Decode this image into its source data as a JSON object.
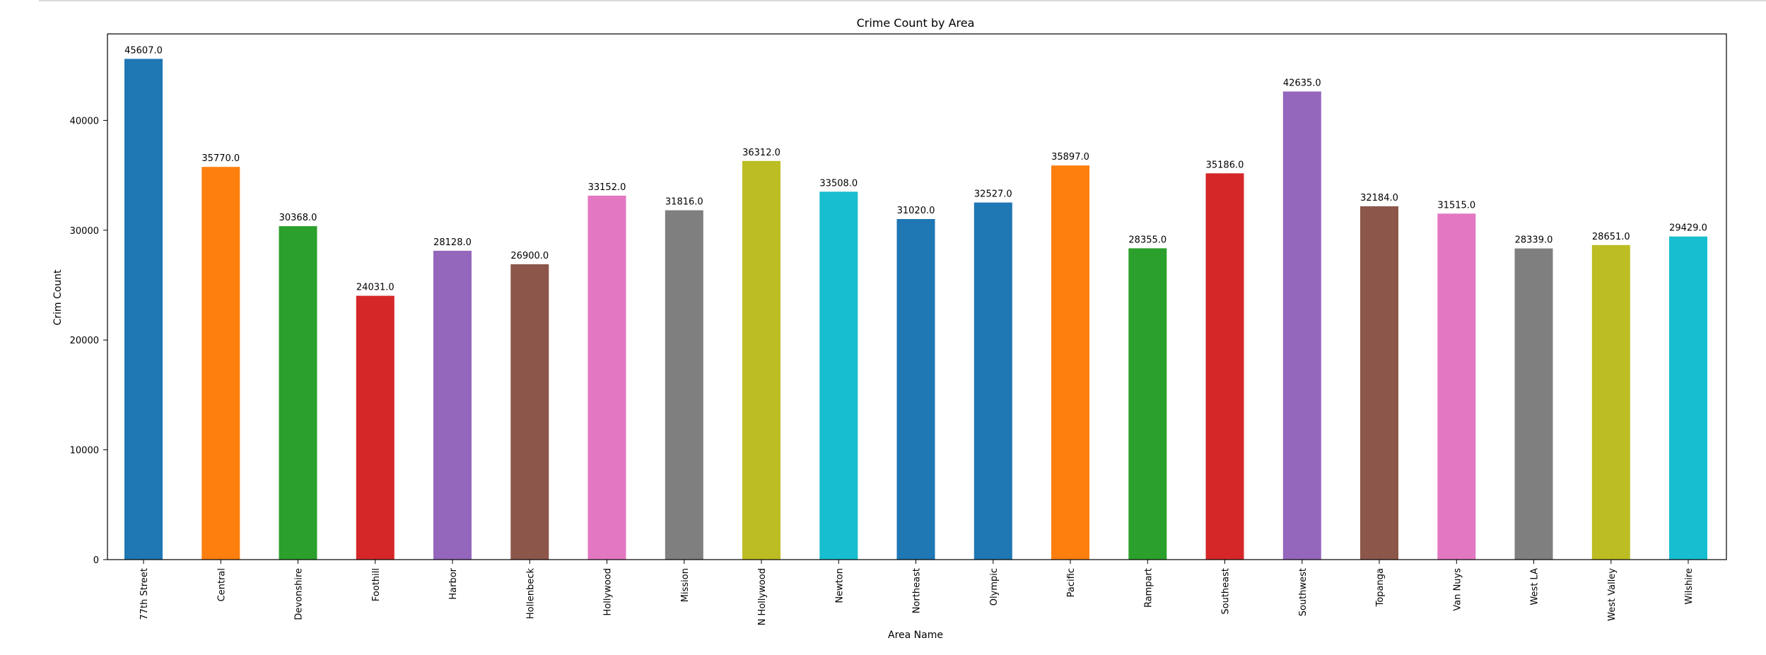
{
  "chart_data": {
    "type": "bar",
    "title": "Crime Count by Area",
    "xlabel": "Area Name",
    "ylabel": "Crim Count",
    "ylim": [
      0,
      47880
    ],
    "yticks": [
      0,
      10000,
      20000,
      30000,
      40000
    ],
    "grid": false,
    "legend": "none",
    "categories": [
      "77th Street",
      "Central",
      "Devonshire",
      "Foothill",
      "Harbor",
      "Hollenbeck",
      "Hollywood",
      "Mission",
      "N Hollywood",
      "Newton",
      "Northeast",
      "Olympic",
      "Pacific",
      "Rampart",
      "Southeast",
      "Southwest",
      "Topanga",
      "Van Nuys",
      "West LA",
      "West Valley",
      "Wilshire"
    ],
    "values": [
      45607.0,
      35770.0,
      30368.0,
      24031.0,
      28128.0,
      26900.0,
      33152.0,
      31816.0,
      36312.0,
      33508.0,
      31020.0,
      32527.0,
      35897.0,
      28355.0,
      35186.0,
      42635.0,
      32184.0,
      31515.0,
      28339.0,
      28651.0,
      29429.0
    ],
    "data_labels": [
      "45607.0",
      "35770.0",
      "30368.0",
      "24031.0",
      "28128.0",
      "26900.0",
      "33152.0",
      "31816.0",
      "36312.0",
      "33508.0",
      "31020.0",
      "32527.0",
      "35897.0",
      "28355.0",
      "35186.0",
      "42635.0",
      "32184.0",
      "31515.0",
      "28339.0",
      "28651.0",
      "29429.0"
    ],
    "colors": [
      "#1f77b4",
      "#ff7f0e",
      "#2ca02c",
      "#d62728",
      "#9467bd",
      "#8c564b",
      "#e377c2",
      "#7f7f7f",
      "#bcbd22",
      "#17becf",
      "#1f77b4",
      "#1f77b4",
      "#ff7f0e",
      "#2ca02c",
      "#d62728",
      "#9467bd",
      "#8c564b",
      "#e377c2",
      "#7f7f7f",
      "#bcbd22",
      "#17becf"
    ]
  }
}
